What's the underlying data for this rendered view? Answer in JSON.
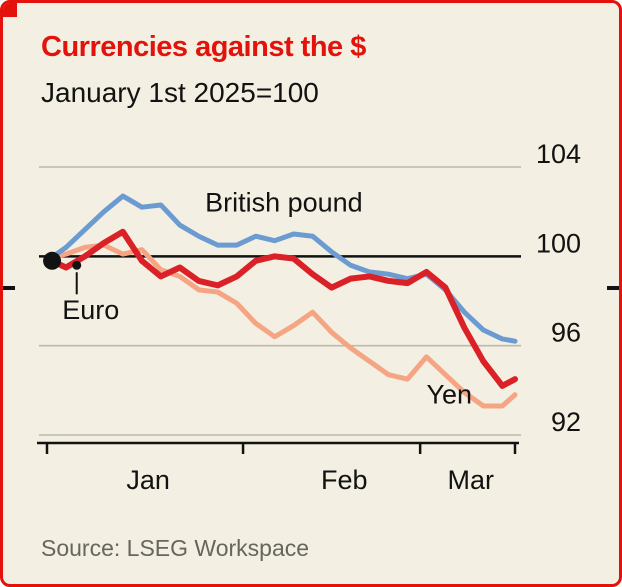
{
  "header": {
    "title": "Currencies against the $",
    "subtitle": "January 1st 2025=100"
  },
  "source": {
    "label": "Source: LSEG Workspace"
  },
  "colors": {
    "background": "#f3efe2",
    "border_red": "#e3120b",
    "title_red": "#e3120b",
    "text": "#121212",
    "grid": "#bdb9ab",
    "axis": "#121212",
    "source_text": "#66655e"
  },
  "chart_data": {
    "type": "line",
    "title": "Currencies against the $",
    "subtitle": "January 1st 2025=100",
    "x_unit": "days since 2025-01-01",
    "x": [
      0,
      3,
      6,
      9,
      12,
      15,
      18,
      21,
      24,
      27,
      30,
      33,
      36,
      39,
      42,
      45,
      48,
      51,
      54,
      57,
      60,
      63,
      66,
      69,
      72,
      74
    ],
    "series": [
      {
        "name": "British pound",
        "color": "#6b9bd1",
        "width": 5,
        "values": [
          99.8,
          100.4,
          101.2,
          102.0,
          102.7,
          102.2,
          102.3,
          101.4,
          100.9,
          100.5,
          100.5,
          100.9,
          100.7,
          101.0,
          100.9,
          100.2,
          99.6,
          99.3,
          99.2,
          99.0,
          99.2,
          98.5,
          97.5,
          96.7,
          96.3,
          96.2
        ]
      },
      {
        "name": "Euro",
        "color": "#da2127",
        "width": 6,
        "values": [
          99.9,
          99.5,
          100.0,
          100.6,
          101.1,
          99.8,
          99.1,
          99.5,
          98.9,
          98.7,
          99.1,
          99.8,
          100.0,
          99.9,
          99.2,
          98.6,
          99.0,
          99.1,
          98.9,
          98.8,
          99.3,
          98.6,
          96.8,
          95.3,
          94.2,
          94.5
        ]
      },
      {
        "name": "Yen",
        "color": "#f5a583",
        "width": 5,
        "values": [
          99.9,
          100.1,
          100.4,
          100.5,
          100.1,
          100.3,
          99.4,
          99.1,
          98.5,
          98.4,
          97.9,
          97.0,
          96.4,
          96.9,
          97.5,
          96.6,
          95.9,
          95.3,
          94.7,
          94.5,
          95.5,
          94.7,
          93.9,
          93.3,
          93.3,
          93.8
        ]
      }
    ],
    "ylim": [
      92,
      104
    ],
    "yticks": [
      92,
      96,
      100,
      104
    ],
    "baseline_value": 100,
    "grid": "horizontal-only",
    "legend": "inline-labels",
    "xticks_days": [
      0,
      31,
      59,
      74
    ],
    "xtick_labels": [
      {
        "label": "Jan",
        "day": 16
      },
      {
        "label": "Feb",
        "day": 47
      },
      {
        "label": "Mar",
        "day": 67
      }
    ],
    "annotations": [
      {
        "text": "British pound",
        "day": 25,
        "value": 102.0,
        "anchor": "start"
      },
      {
        "text": "Euro",
        "day": 4.7,
        "value": 97.2,
        "anchor": "middle",
        "dx": 14,
        "callout": {
          "dot_day": 4.7,
          "dot_value": 99.6,
          "line_to_value": 98.3
        }
      },
      {
        "text": "Yen",
        "day": 60,
        "value": 93.4,
        "anchor": "start"
      }
    ],
    "start_dot": {
      "day": 0.8,
      "value": 99.8,
      "radius": 9
    }
  }
}
